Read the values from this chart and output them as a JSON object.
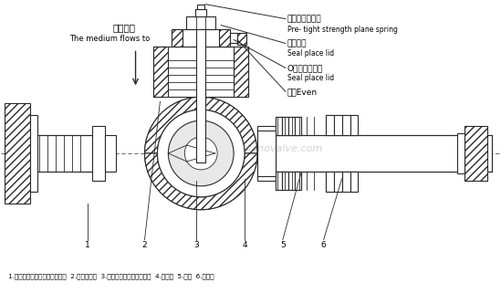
{
  "bg_color": "#ffffff",
  "line_color": "#2a2a2a",
  "watermark": "dianovalve.com",
  "label_zh_flow": "介质流向",
  "label_en_flow": "The medium flows to",
  "annotations": [
    {
      "zh": "预紧力平面弹簧",
      "en": "Pre- tight strength plane spring"
    },
    {
      "zh": "密封座盖",
      "en": "Seal place lid"
    },
    {
      "zh": "O型橡胶密封圈",
      "en": "Seal place lid"
    },
    {
      "zh": "平鍵Even",
      "en": ""
    }
  ],
  "bottom_caption": "1.金属密封座或聚四氟乙烯阀座  2.自由流动孔  3.最佳控制特性流线型外形  4.固定件  5.阎体  6.双轴承"
}
